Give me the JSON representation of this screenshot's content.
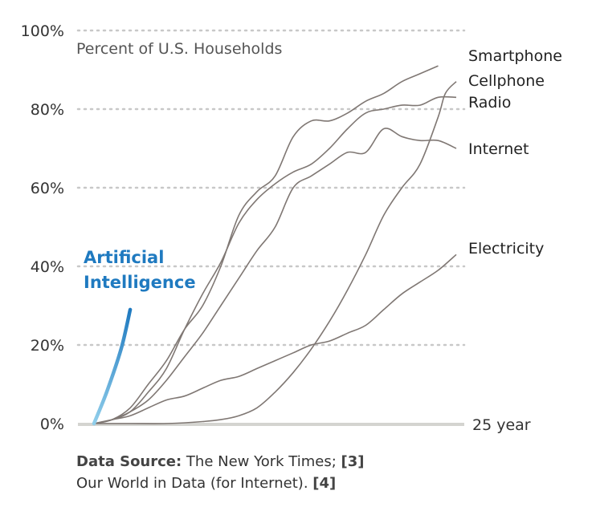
{
  "chart_data": {
    "type": "line",
    "ylabel": "Percent of U.S. Households",
    "x_end_label": "25 year",
    "ylim": [
      0,
      100
    ],
    "xlim": [
      0,
      25
    ],
    "y_ticks": [
      "0%",
      "20%",
      "40%",
      "60%",
      "80%",
      "100%"
    ],
    "grid": true,
    "colors": {
      "series": "#7f7773",
      "ai_start": "#8fcdea",
      "ai_end": "#1f7ac0",
      "grid": "#c8c8c8",
      "axis": "#d4d4d0"
    },
    "series": [
      {
        "name": "Smartphone",
        "points": [
          [
            0,
            0
          ],
          [
            1,
            1
          ],
          [
            2,
            4
          ],
          [
            3,
            10
          ],
          [
            4,
            16
          ],
          [
            5,
            24
          ],
          [
            6,
            30
          ],
          [
            7,
            40
          ],
          [
            8,
            53
          ],
          [
            9,
            59
          ],
          [
            10,
            63
          ],
          [
            11,
            73
          ],
          [
            12,
            77
          ],
          [
            13,
            77
          ],
          [
            14,
            79
          ],
          [
            15,
            82
          ],
          [
            16,
            84
          ],
          [
            17,
            87
          ],
          [
            18,
            89
          ],
          [
            19,
            91
          ]
        ]
      },
      {
        "name": "Cellphone",
        "points": [
          [
            0,
            0
          ],
          [
            2,
            0
          ],
          [
            4,
            0
          ],
          [
            6,
            0.5
          ],
          [
            7,
            1
          ],
          [
            8,
            2
          ],
          [
            9,
            4
          ],
          [
            10,
            8
          ],
          [
            11,
            13
          ],
          [
            12,
            19
          ],
          [
            13,
            26
          ],
          [
            14,
            34
          ],
          [
            15,
            43
          ],
          [
            16,
            53
          ],
          [
            17,
            60
          ],
          [
            18,
            66
          ],
          [
            19,
            78
          ],
          [
            19.4,
            84
          ],
          [
            20,
            87
          ]
        ]
      },
      {
        "name": "Radio",
        "points": [
          [
            0,
            0
          ],
          [
            1,
            1
          ],
          [
            2,
            3
          ],
          [
            3,
            8
          ],
          [
            4,
            14
          ],
          [
            5,
            24
          ],
          [
            6,
            33
          ],
          [
            7,
            41
          ],
          [
            8,
            51
          ],
          [
            9,
            57
          ],
          [
            10,
            61
          ],
          [
            11,
            64
          ],
          [
            12,
            66
          ],
          [
            13,
            70
          ],
          [
            14,
            75
          ],
          [
            15,
            79
          ],
          [
            16,
            80
          ],
          [
            17,
            81
          ],
          [
            18,
            81
          ],
          [
            19,
            83
          ],
          [
            20,
            83
          ]
        ]
      },
      {
        "name": "Internet",
        "points": [
          [
            0,
            0
          ],
          [
            1,
            1
          ],
          [
            2,
            3
          ],
          [
            3,
            6
          ],
          [
            4,
            11
          ],
          [
            5,
            17
          ],
          [
            6,
            23
          ],
          [
            7,
            30
          ],
          [
            8,
            37
          ],
          [
            9,
            44
          ],
          [
            10,
            50
          ],
          [
            11,
            60
          ],
          [
            12,
            63
          ],
          [
            13,
            66
          ],
          [
            14,
            69
          ],
          [
            15,
            69
          ],
          [
            16,
            75
          ],
          [
            17,
            73
          ],
          [
            18,
            72
          ],
          [
            19,
            72
          ],
          [
            20,
            70
          ]
        ]
      },
      {
        "name": "Electricity",
        "points": [
          [
            0,
            0
          ],
          [
            1,
            1
          ],
          [
            2,
            2
          ],
          [
            3,
            4
          ],
          [
            4,
            6
          ],
          [
            5,
            7
          ],
          [
            6,
            9
          ],
          [
            7,
            11
          ],
          [
            8,
            12
          ],
          [
            9,
            14
          ],
          [
            10,
            16
          ],
          [
            11,
            18
          ],
          [
            12,
            20
          ],
          [
            13,
            21
          ],
          [
            14,
            23
          ],
          [
            15,
            25
          ],
          [
            16,
            29
          ],
          [
            17,
            33
          ],
          [
            18,
            36
          ],
          [
            19,
            39
          ],
          [
            20,
            43
          ]
        ]
      }
    ],
    "highlight": {
      "name_line1": "Artificial",
      "name_line2": "Intelligence",
      "points": [
        [
          0,
          0
        ],
        [
          0.7,
          8
        ],
        [
          1.5,
          19
        ],
        [
          2,
          29
        ]
      ]
    }
  },
  "source": {
    "label": "Data Source:",
    "text1": " The New York Times; ",
    "ref1": "[3]",
    "text2": "Our World in Data (for Internet). ",
    "ref2": "[4]"
  }
}
